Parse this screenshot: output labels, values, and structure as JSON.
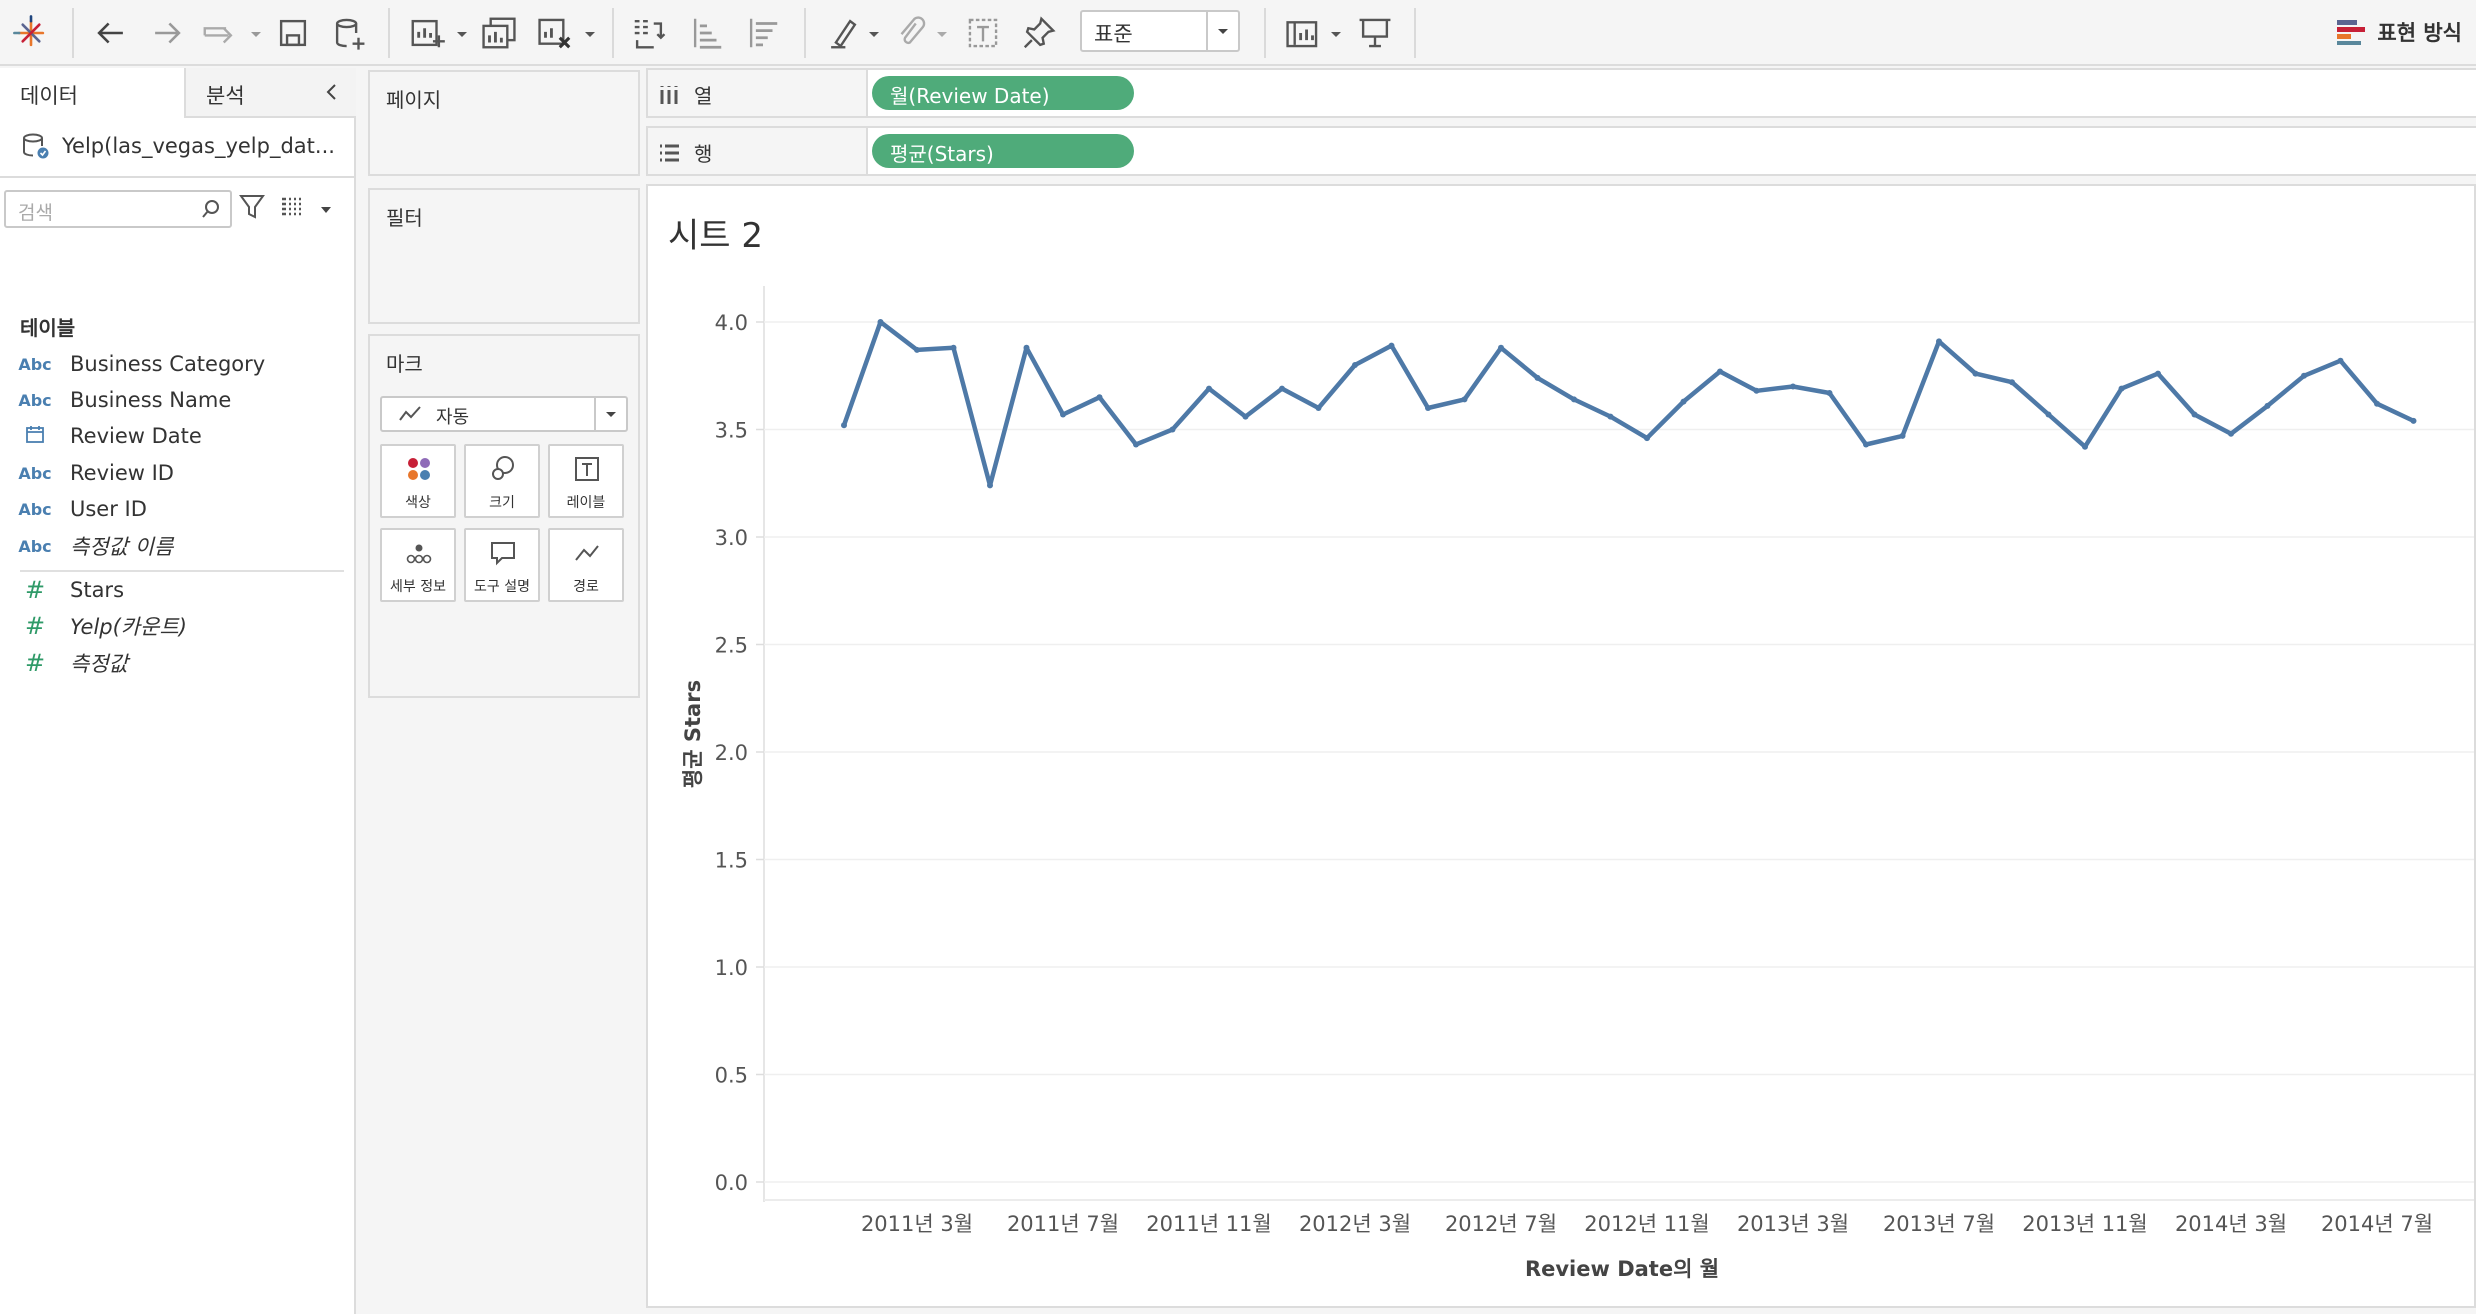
{
  "toolbar": {
    "fit_label": "표준",
    "show_me_label": "표현 방식",
    "icons": [
      "tableau-logo-icon",
      "undo-icon",
      "redo-icon",
      "replay-icon",
      "save-icon",
      "new-datasource-icon",
      "new-worksheet-icon",
      "duplicate-icon",
      "clear-icon",
      "swap-icon",
      "sort-asc-icon",
      "sort-desc-icon",
      "highlight-icon",
      "group-icon",
      "label-icon",
      "pin-icon",
      "show-cards-icon",
      "presentation-icon"
    ]
  },
  "data_pane": {
    "tab_data": "데이터",
    "tab_analytics": "분석",
    "datasource_name": "Yelp(las_vegas_yelp_dat...",
    "search_placeholder": "검색",
    "tables_label": "테이블",
    "fields": [
      {
        "type": "Abc",
        "name": "Business Category",
        "kind": "dimension"
      },
      {
        "type": "Abc",
        "name": "Business Name",
        "kind": "dimension"
      },
      {
        "type": "date",
        "name": "Review Date",
        "kind": "dimension"
      },
      {
        "type": "Abc",
        "name": "Review ID",
        "kind": "dimension"
      },
      {
        "type": "Abc",
        "name": "User ID",
        "kind": "dimension"
      },
      {
        "type": "Abc",
        "name": "측정값 이름",
        "kind": "dimension"
      },
      {
        "type": "#",
        "name": "Stars",
        "kind": "measure"
      },
      {
        "type": "#",
        "name": "Yelp(카운트)",
        "kind": "measure"
      },
      {
        "type": "#",
        "name": "측정값",
        "kind": "measure"
      }
    ]
  },
  "cards": {
    "pages_label": "페이지",
    "filters_label": "필터",
    "marks_label": "마크",
    "mark_type": "자동",
    "mark_buttons": [
      "색상",
      "크기",
      "레이블",
      "세부 정보",
      "도구 설명",
      "경로"
    ]
  },
  "shelves": {
    "columns_label": "열",
    "rows_label": "행",
    "columns_pill": "월(Review Date)",
    "rows_pill": "평균(Stars)"
  },
  "sheet": {
    "title": "시트 2"
  },
  "colors": {
    "line": "#4e79a7",
    "pill": "#4fab7a"
  },
  "chart_data": {
    "type": "line",
    "xlabel": "Review Date의 월",
    "ylabel": "평균 Stars",
    "ylim": [
      0,
      4.0
    ],
    "yticks": [
      "0.0",
      "0.5",
      "1.0",
      "1.5",
      "2.0",
      "2.5",
      "3.0",
      "3.5",
      "4.0"
    ],
    "xticks": [
      "2011년 3월",
      "2011년 7월",
      "2011년 11월",
      "2012년 3월",
      "2012년 7월",
      "2012년 11월",
      "2013년 3월",
      "2013년 7월",
      "2013년 11월",
      "2014년 3월",
      "2014년 7월"
    ],
    "x": [
      "2011-01",
      "2011-02",
      "2011-03",
      "2011-04",
      "2011-05",
      "2011-06",
      "2011-07",
      "2011-08",
      "2011-09",
      "2011-10",
      "2011-11",
      "2011-12",
      "2012-01",
      "2012-02",
      "2012-03",
      "2012-04",
      "2012-05",
      "2012-06",
      "2012-07",
      "2012-08",
      "2012-09",
      "2012-10",
      "2012-11",
      "2012-12",
      "2013-01",
      "2013-02",
      "2013-03",
      "2013-04",
      "2013-05",
      "2013-06",
      "2013-07",
      "2013-08",
      "2013-09",
      "2013-10",
      "2013-11",
      "2013-12",
      "2014-01",
      "2014-02",
      "2014-03",
      "2014-04",
      "2014-05",
      "2014-06",
      "2014-07",
      "2014-08"
    ],
    "series": [
      {
        "values": [
          3.52,
          4.0,
          3.87,
          3.88,
          3.24,
          3.88,
          3.57,
          3.65,
          3.43,
          3.5,
          3.69,
          3.56,
          3.69,
          3.6,
          3.8,
          3.89,
          3.6,
          3.64,
          3.88,
          3.74,
          3.64,
          3.56,
          3.46,
          3.63,
          3.77,
          3.68,
          3.7,
          3.67,
          3.43,
          3.47,
          3.91,
          3.76,
          3.72,
          3.57,
          3.42,
          3.69,
          3.76,
          3.57,
          3.48,
          3.61,
          3.75,
          3.82,
          3.62,
          3.54
        ]
      }
    ]
  }
}
